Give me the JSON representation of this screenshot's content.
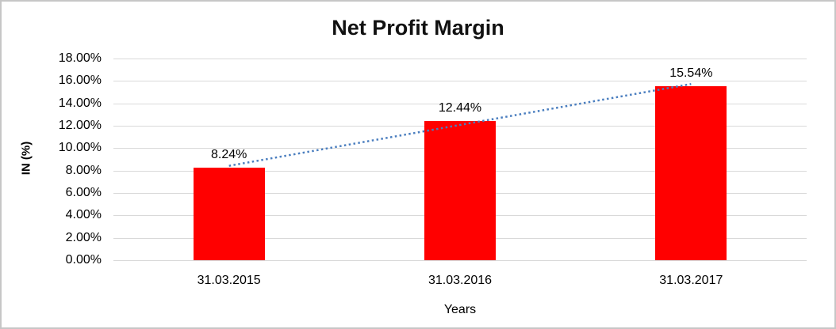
{
  "chart_data": {
    "type": "bar",
    "title": "Net Profit Margin",
    "xlabel": "Years",
    "ylabel": "IN (%)",
    "categories": [
      "31.03.2015",
      "31.03.2016",
      "31.03.2017"
    ],
    "values": [
      8.24,
      12.44,
      15.54
    ],
    "data_labels": [
      "8.24%",
      "12.44%",
      "15.54%"
    ],
    "ylim": [
      0,
      18
    ],
    "ytick_step": 2,
    "ytick_labels": [
      "0.00%",
      "2.00%",
      "4.00%",
      "6.00%",
      "8.00%",
      "10.00%",
      "12.00%",
      "14.00%",
      "16.00%",
      "18.00%"
    ],
    "grid": true,
    "legend": "none",
    "trendline": {
      "type": "linear",
      "style": "dotted"
    },
    "colors": {
      "bar": "#ff0000",
      "gridline": "#d9d9d9",
      "trendline": "#4a7ebf",
      "text": "#000000",
      "border": "#c6c6c6",
      "background": "#ffffff"
    }
  }
}
